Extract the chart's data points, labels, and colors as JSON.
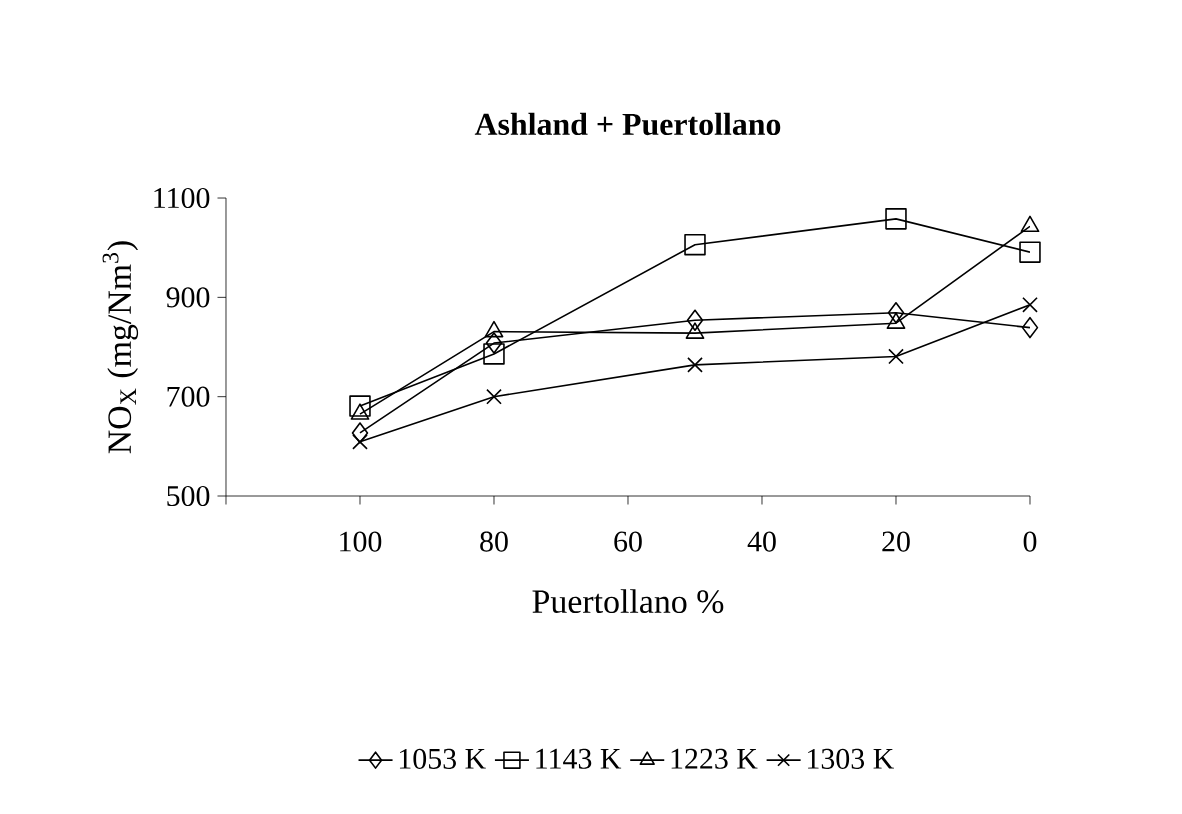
{
  "chart_data": {
    "type": "line",
    "title": "Ashland + Puertollano",
    "xlabel": "Puertollano %",
    "ylabel": "NO$_{X}$ (mg/Nm$^{3}$)",
    "x": [
      100,
      80,
      50,
      20,
      0
    ],
    "xlim": [
      120,
      0
    ],
    "xticks": [
      {
        "value": 120,
        "label": null
      },
      100,
      80,
      60,
      40,
      20,
      0
    ],
    "ylim": [
      500,
      1100
    ],
    "yticks": [
      500,
      700,
      900,
      1100
    ],
    "legend": "bottom",
    "grid": false,
    "series": [
      {
        "name": "1053 K",
        "color": "#000000",
        "marker": "diamond",
        "values": [
          627,
          808,
          854,
          869,
          839
        ]
      },
      {
        "name": "1143 K",
        "color": "#000000",
        "marker": "square",
        "values": [
          681,
          786,
          1006,
          1058,
          991
        ]
      },
      {
        "name": "1223 K",
        "color": "#000000",
        "marker": "triangle",
        "values": [
          665,
          831,
          828,
          848,
          1043
        ]
      },
      {
        "name": "1303 K",
        "color": "#000000",
        "marker": "cross",
        "values": [
          609,
          700,
          764,
          781,
          885
        ]
      }
    ]
  }
}
